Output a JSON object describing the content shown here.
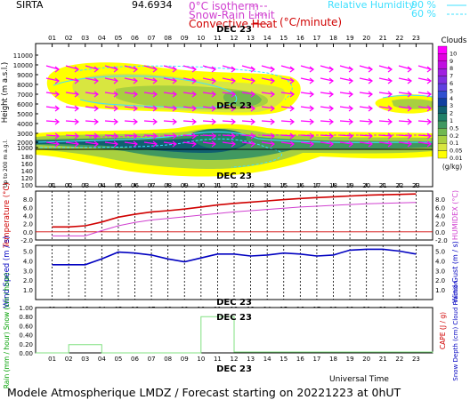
{
  "header": {
    "station": "SIRTA",
    "coords": "94.6934",
    "isotherm_label": "0°C isotherm",
    "snow_rain_label": "Snow-Rain Limit",
    "convective_label": "Convective Heat",
    "convective_unit": "(°C/minute)",
    "rh_label": "Relative Humidity",
    "rh_90": "90 %",
    "rh_60": "60 %"
  },
  "footer": {
    "universal_time": "Universal Time",
    "model_line": "Modele Atmospherique LMDZ / Forecast starting on 20221223 at 0hUT"
  },
  "colors": {
    "temperature": "#d00000",
    "humidex": "#d040d0",
    "wind": "#0000c0",
    "precip": "#80e080",
    "wind_arrow": "#ff00ff",
    "rh": "#40e0ff"
  },
  "chart_data": [
    {
      "type": "heatmap",
      "name": "clouds",
      "xlabel": "DEC 23",
      "ylabel": "Height (m a.s.l.)",
      "ylabel_low": "Up to 200 m a.g.l.",
      "hours": [
        "01",
        "02",
        "03",
        "04",
        "05",
        "06",
        "07",
        "08",
        "09",
        "10",
        "11",
        "12",
        "13",
        "14",
        "15",
        "16",
        "17",
        "18",
        "19",
        "20",
        "21",
        "22",
        "23"
      ],
      "yticks_upper": [
        "11000",
        "10000",
        "9000",
        "8000",
        "7000",
        "6000",
        "5000",
        "4000",
        "3000",
        "2000",
        "1000"
      ],
      "yticks_lower": [
        "180",
        "160",
        "140",
        "120",
        "100"
      ],
      "legend_title": "Clouds",
      "legend_unit": "(g/kg)",
      "legend_levels": [
        "0.01",
        "0.05",
        "0.1",
        "0.2",
        "0.5",
        "1",
        "2",
        "3",
        "4",
        "5",
        "6",
        "7",
        "8",
        "9",
        "10"
      ],
      "legend_colors": [
        "#ffff00",
        "#d8e640",
        "#a8d040",
        "#70b850",
        "#409860",
        "#208068",
        "#106070",
        "#1040a0",
        "#3050d0",
        "#6040e0",
        "#8030e0",
        "#a020e0",
        "#c010e0",
        "#e000e0",
        "#ff00ff"
      ]
    },
    {
      "type": "line",
      "name": "temperature",
      "xlabel": "DEC 23",
      "ylabel_left": "Temperature (°C)",
      "ylabel_right": "HUMIDEX (°C)",
      "yticks": [
        "8.0",
        "6.0",
        "4.0",
        "2.0",
        "0.0",
        "-2.0"
      ],
      "ylim": [
        -2,
        10
      ],
      "x": [
        1,
        2,
        3,
        4,
        5,
        6,
        7,
        8,
        9,
        10,
        11,
        12,
        13,
        14,
        15,
        16,
        17,
        18,
        19,
        20,
        21,
        22,
        23
      ],
      "series": [
        {
          "name": "Temperature",
          "values": [
            1.2,
            1.2,
            1.5,
            2.4,
            3.6,
            4.3,
            4.9,
            5.2,
            5.6,
            6.1,
            6.6,
            7.0,
            7.3,
            7.6,
            7.9,
            8.2,
            8.4,
            8.6,
            8.8,
            9.0,
            9.1,
            9.2,
            9.3
          ]
        },
        {
          "name": "HUMIDEX",
          "values": [
            -1.0,
            -1.0,
            -1.0,
            0.3,
            1.5,
            2.3,
            2.9,
            3.3,
            3.7,
            4.1,
            4.5,
            4.9,
            5.2,
            5.5,
            5.8,
            6.1,
            6.3,
            6.5,
            6.7,
            6.9,
            7.0,
            7.1,
            7.2
          ]
        }
      ]
    },
    {
      "type": "line",
      "name": "wind",
      "xlabel": "DEC 23",
      "ylabel_left": "Wind Speed (m / s)",
      "ylabel_right": "Wind Gust (m / s)",
      "yticks": [
        "5.0",
        "4.0",
        "3.0",
        "2.0",
        "1.0"
      ],
      "ylim": [
        0,
        5.6
      ],
      "x": [
        1,
        2,
        3,
        4,
        5,
        6,
        7,
        8,
        9,
        10,
        11,
        12,
        13,
        14,
        15,
        16,
        17,
        18,
        19,
        20,
        21,
        22,
        23
      ],
      "series": [
        {
          "name": "Wind Speed",
          "values": [
            3.6,
            3.6,
            3.6,
            4.2,
            4.9,
            4.8,
            4.6,
            4.2,
            3.9,
            4.3,
            4.7,
            4.7,
            4.5,
            4.6,
            4.8,
            4.7,
            4.5,
            4.6,
            5.1,
            5.2,
            5.2,
            5.0,
            4.7
          ]
        }
      ]
    },
    {
      "type": "bar",
      "name": "precipitation",
      "xlabel": "DEC 23",
      "ylabel_left": "Rain (mm / hour) Snow (cm / hour)",
      "ylabel_right_red": "CAPE (J / g)",
      "ylabel_right_blue": "Snow Depth (cm) Cloud Fraction",
      "yticks": [
        "1.00",
        "0.80",
        "0.60",
        "0.40",
        "0.20",
        "0.00"
      ],
      "ylim": [
        0,
        1.0
      ],
      "x": [
        1,
        2,
        3,
        4,
        5,
        6,
        7,
        8,
        9,
        10,
        11,
        12,
        13,
        14,
        15,
        16,
        17,
        18,
        19,
        20,
        21,
        22,
        23
      ],
      "values": [
        0,
        0.18,
        0.18,
        0,
        0,
        0,
        0,
        0,
        0,
        0.8,
        0.8,
        0.02,
        0.02,
        0.02,
        0.02,
        0.02,
        0.02,
        0.02,
        0.02,
        0.02,
        0.02,
        0.02,
        0.02
      ]
    }
  ]
}
